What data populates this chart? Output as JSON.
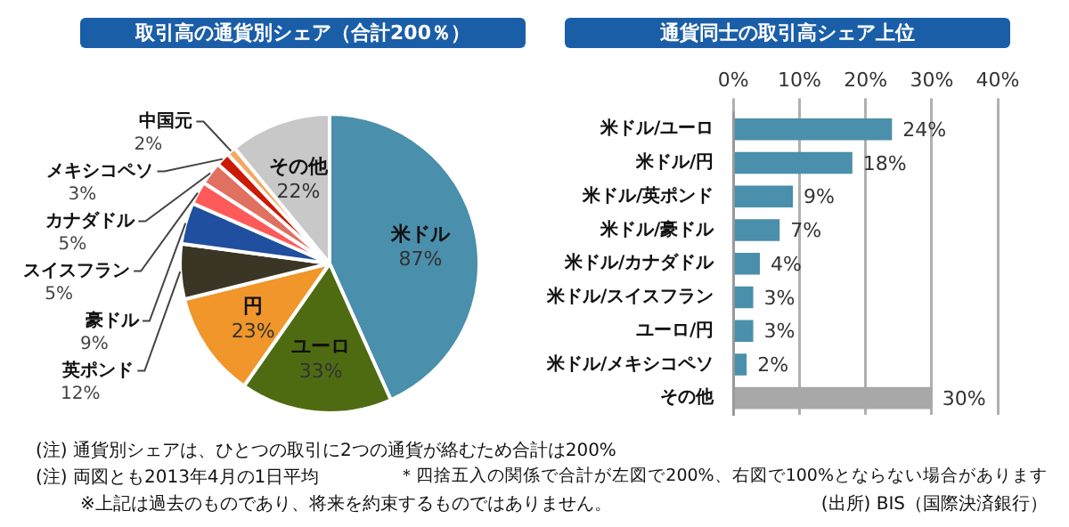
{
  "chart_data": [
    {
      "type": "pie",
      "title": "取引高の通貨別シェア（合計200％）",
      "categories": [
        "米ドル",
        "ユーロ",
        "円",
        "英ポンド",
        "豪ドル",
        "スイスフラン",
        "カナダドル",
        "メキシコペソ",
        "中国元",
        "その他"
      ],
      "values": [
        87,
        33,
        23,
        12,
        9,
        5,
        5,
        3,
        2,
        22
      ],
      "value_labels": [
        "87%",
        "33%",
        "23%",
        "12%",
        "9%",
        "5%",
        "5%",
        "3%",
        "2%",
        "22%"
      ],
      "colors": [
        "#4a8fab",
        "#4f6b12",
        "#f0962a",
        "#3b3526",
        "#1f4f9e",
        "#ff5a5a",
        "#e07060",
        "#cc1a00",
        "#f4a860",
        "#c8c8c8"
      ],
      "legend": false,
      "annotations": [
        "(注) 通貨別シェアは、ひとつの取引に2つの通貨が絡むため合計は200%",
        "(注) 両図とも2013年4月の1日平均",
        "※上記は過去のものであり、将来を約束するものではありません。"
      ]
    },
    {
      "type": "bar",
      "orientation": "horizontal",
      "title": "通貨同士の取引高シェア上位",
      "categories": [
        "米ドル/ユーロ",
        "米ドル/円",
        "米ドル/英ポンド",
        "米ドル/豪ドル",
        "米ドル/カナダドル",
        "米ドル/スイスフラン",
        "ユーロ/円",
        "米ドル/メキシコペソ",
        "その他"
      ],
      "values": [
        24,
        18,
        9,
        7,
        4,
        3,
        3,
        2,
        30
      ],
      "value_labels": [
        "24%",
        "18%",
        "9%",
        "7%",
        "4%",
        "3%",
        "3%",
        "2%",
        "30%"
      ],
      "colors": [
        "#4a8fab",
        "#4a8fab",
        "#4a8fab",
        "#4a8fab",
        "#4a8fab",
        "#4a8fab",
        "#4a8fab",
        "#4a8fab",
        "#a8a8a8"
      ],
      "xlim": [
        0,
        40
      ],
      "xticks": [
        {
          "value": 0,
          "label": "0%"
        },
        {
          "value": 10,
          "label": "10%"
        },
        {
          "value": 20,
          "label": "20%"
        },
        {
          "value": 30,
          "label": "30%"
        },
        {
          "value": 40,
          "label": "40%"
        }
      ],
      "grid": "x",
      "legend": false,
      "annotations": [
        "＊四捨五入の関係で合計が左図で200%、右図で100%とならない場合があります",
        "(出所) BIS（国際決済銀行）"
      ]
    }
  ]
}
